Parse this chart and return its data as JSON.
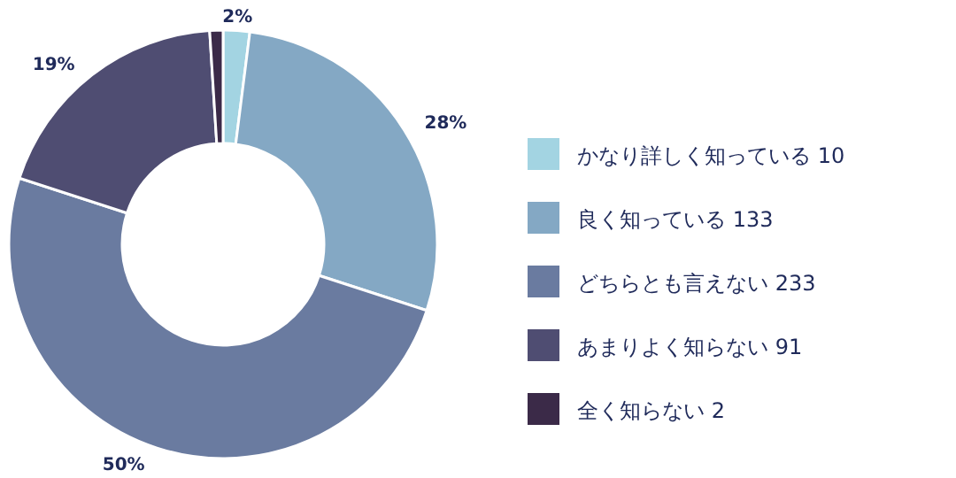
{
  "chart_data": {
    "type": "donut",
    "categories": [
      "かなり詳しく知っている 10",
      "良く知っている 133",
      "どちらとも言えない 233",
      "あまりよく知らない 91",
      "全く知らない 2"
    ],
    "values": [
      2,
      28,
      50,
      19,
      1
    ],
    "colors": [
      "#a3d4e2",
      "#84a8c4",
      "#6a7ba0",
      "#4f4d72",
      "#3b2a48"
    ],
    "value_labels": [
      "2%",
      "28%",
      "50%",
      "19%",
      null
    ],
    "legend": "right"
  }
}
